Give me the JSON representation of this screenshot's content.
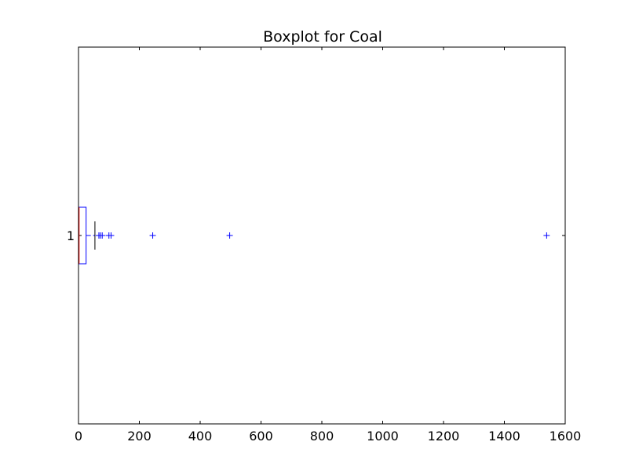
{
  "chart_data": {
    "type": "boxplot",
    "title": "Boxplot for Coal",
    "orientation": "horizontal",
    "xlim": [
      0,
      1600
    ],
    "xticks": [
      0,
      200,
      400,
      600,
      800,
      1000,
      1200,
      1400,
      1600
    ],
    "categories": [
      "1"
    ],
    "boxes": [
      {
        "label": "1",
        "whisker_low": 0,
        "q1": 0,
        "median": 2,
        "q3": 25,
        "whisker_high": 54,
        "outliers": [
          67,
          72,
          78,
          100,
          107,
          244,
          497,
          1539
        ]
      }
    ],
    "colors": {
      "box": "#0000ff",
      "median": "#ff0000",
      "whisker": "#0000ff",
      "cap": "#000000",
      "outlier": "#0000ff"
    },
    "grid": false
  }
}
